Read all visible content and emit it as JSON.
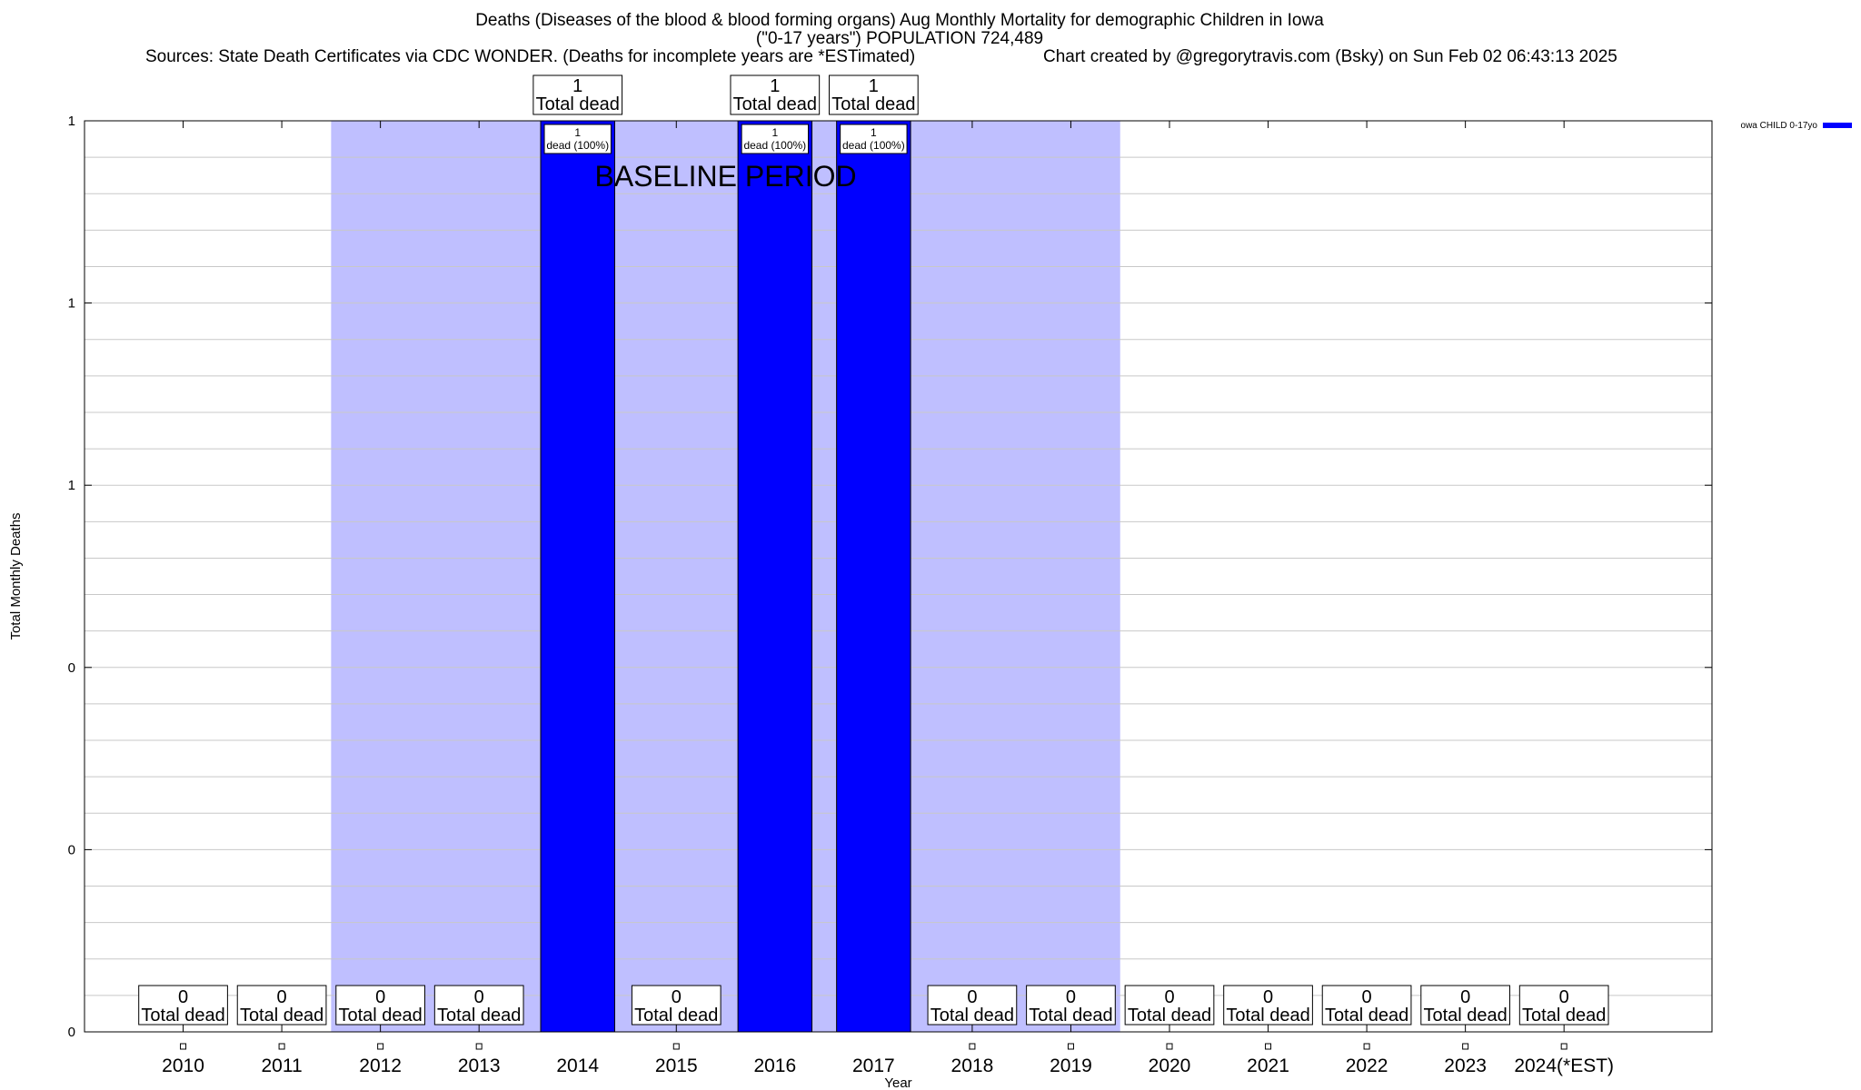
{
  "header": {
    "title_line1": "Deaths (Diseases of the blood & blood forming organs) Aug Monthly Mortality for demographic Children in Iowa",
    "title_line2": "(\"0-17 years\") POPULATION 724,489",
    "sources": "Sources: State Death Certificates via CDC WONDER. (Deaths for incomplete years are *ESTimated)",
    "credit": "Chart created by @gregorytravis.com (Bsky) on Sun Feb 02 06:43:13 2025"
  },
  "chart_data": {
    "type": "bar",
    "categories": [
      "2010",
      "2011",
      "2012",
      "2013",
      "2014",
      "2015",
      "2016",
      "2017",
      "2018",
      "2019",
      "2020",
      "2021",
      "2022",
      "2023",
      "2024(*EST)"
    ],
    "series": [
      {
        "name": "owa CHILD 0-17yo",
        "values": [
          0,
          0,
          0,
          0,
          1,
          0,
          1,
          1,
          0,
          0,
          0,
          0,
          0,
          0,
          0
        ],
        "color": "#0000ff"
      }
    ],
    "top_labels": {
      "count_suffix": "Total dead",
      "pct_label": "dead (100%)"
    },
    "xlabel": "Year",
    "ylabel": "Total Monthly Deaths",
    "ylim": [
      0,
      1
    ],
    "y_tick_labels": [
      "0",
      "0",
      "0",
      "1",
      "1",
      "1"
    ],
    "grid": true,
    "baseline_period": {
      "label": "BASELINE PERIOD",
      "start": "2012",
      "end": "2019",
      "color": "#bfbfff"
    },
    "legend_position": "top-right"
  }
}
